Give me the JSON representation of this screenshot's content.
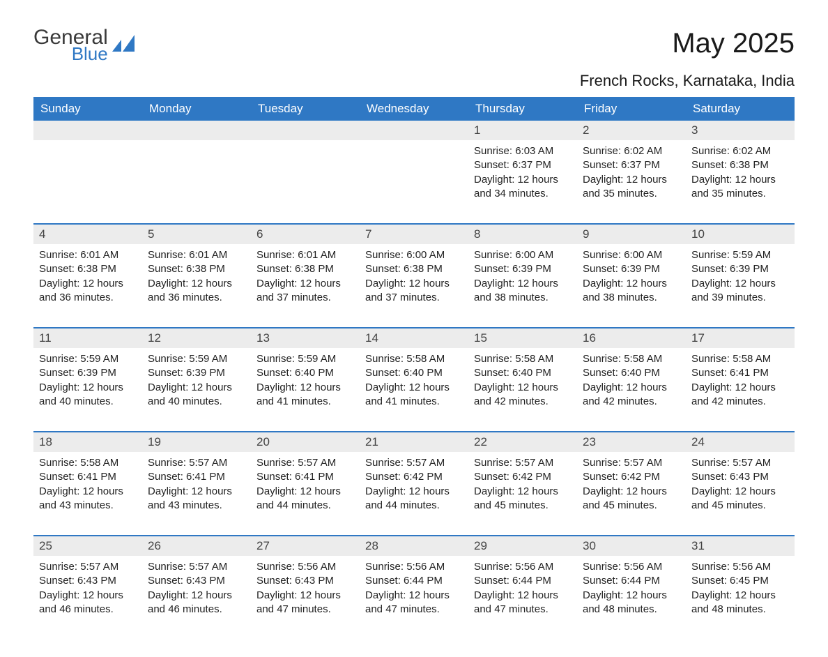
{
  "logo": {
    "word1": "General",
    "word2": "Blue",
    "brand_color": "#2f78c4",
    "text_color": "#3a3a3a"
  },
  "title": "May 2025",
  "location": "French Rocks, Karnataka, India",
  "header_bg": "#2f78c4",
  "header_fg": "#ffffff",
  "daynum_bg": "#ececec",
  "week_border": "#2f78c4",
  "body_bg": "#ffffff",
  "dow": [
    "Sunday",
    "Monday",
    "Tuesday",
    "Wednesday",
    "Thursday",
    "Friday",
    "Saturday"
  ],
  "weeks": [
    [
      null,
      null,
      null,
      null,
      {
        "n": "1",
        "sunrise": "6:03 AM",
        "sunset": "6:37 PM",
        "daylight": "12 hours and 34 minutes."
      },
      {
        "n": "2",
        "sunrise": "6:02 AM",
        "sunset": "6:37 PM",
        "daylight": "12 hours and 35 minutes."
      },
      {
        "n": "3",
        "sunrise": "6:02 AM",
        "sunset": "6:38 PM",
        "daylight": "12 hours and 35 minutes."
      }
    ],
    [
      {
        "n": "4",
        "sunrise": "6:01 AM",
        "sunset": "6:38 PM",
        "daylight": "12 hours and 36 minutes."
      },
      {
        "n": "5",
        "sunrise": "6:01 AM",
        "sunset": "6:38 PM",
        "daylight": "12 hours and 36 minutes."
      },
      {
        "n": "6",
        "sunrise": "6:01 AM",
        "sunset": "6:38 PM",
        "daylight": "12 hours and 37 minutes."
      },
      {
        "n": "7",
        "sunrise": "6:00 AM",
        "sunset": "6:38 PM",
        "daylight": "12 hours and 37 minutes."
      },
      {
        "n": "8",
        "sunrise": "6:00 AM",
        "sunset": "6:39 PM",
        "daylight": "12 hours and 38 minutes."
      },
      {
        "n": "9",
        "sunrise": "6:00 AM",
        "sunset": "6:39 PM",
        "daylight": "12 hours and 38 minutes."
      },
      {
        "n": "10",
        "sunrise": "5:59 AM",
        "sunset": "6:39 PM",
        "daylight": "12 hours and 39 minutes."
      }
    ],
    [
      {
        "n": "11",
        "sunrise": "5:59 AM",
        "sunset": "6:39 PM",
        "daylight": "12 hours and 40 minutes."
      },
      {
        "n": "12",
        "sunrise": "5:59 AM",
        "sunset": "6:39 PM",
        "daylight": "12 hours and 40 minutes."
      },
      {
        "n": "13",
        "sunrise": "5:59 AM",
        "sunset": "6:40 PM",
        "daylight": "12 hours and 41 minutes."
      },
      {
        "n": "14",
        "sunrise": "5:58 AM",
        "sunset": "6:40 PM",
        "daylight": "12 hours and 41 minutes."
      },
      {
        "n": "15",
        "sunrise": "5:58 AM",
        "sunset": "6:40 PM",
        "daylight": "12 hours and 42 minutes."
      },
      {
        "n": "16",
        "sunrise": "5:58 AM",
        "sunset": "6:40 PM",
        "daylight": "12 hours and 42 minutes."
      },
      {
        "n": "17",
        "sunrise": "5:58 AM",
        "sunset": "6:41 PM",
        "daylight": "12 hours and 42 minutes."
      }
    ],
    [
      {
        "n": "18",
        "sunrise": "5:58 AM",
        "sunset": "6:41 PM",
        "daylight": "12 hours and 43 minutes."
      },
      {
        "n": "19",
        "sunrise": "5:57 AM",
        "sunset": "6:41 PM",
        "daylight": "12 hours and 43 minutes."
      },
      {
        "n": "20",
        "sunrise": "5:57 AM",
        "sunset": "6:41 PM",
        "daylight": "12 hours and 44 minutes."
      },
      {
        "n": "21",
        "sunrise": "5:57 AM",
        "sunset": "6:42 PM",
        "daylight": "12 hours and 44 minutes."
      },
      {
        "n": "22",
        "sunrise": "5:57 AM",
        "sunset": "6:42 PM",
        "daylight": "12 hours and 45 minutes."
      },
      {
        "n": "23",
        "sunrise": "5:57 AM",
        "sunset": "6:42 PM",
        "daylight": "12 hours and 45 minutes."
      },
      {
        "n": "24",
        "sunrise": "5:57 AM",
        "sunset": "6:43 PM",
        "daylight": "12 hours and 45 minutes."
      }
    ],
    [
      {
        "n": "25",
        "sunrise": "5:57 AM",
        "sunset": "6:43 PM",
        "daylight": "12 hours and 46 minutes."
      },
      {
        "n": "26",
        "sunrise": "5:57 AM",
        "sunset": "6:43 PM",
        "daylight": "12 hours and 46 minutes."
      },
      {
        "n": "27",
        "sunrise": "5:56 AM",
        "sunset": "6:43 PM",
        "daylight": "12 hours and 47 minutes."
      },
      {
        "n": "28",
        "sunrise": "5:56 AM",
        "sunset": "6:44 PM",
        "daylight": "12 hours and 47 minutes."
      },
      {
        "n": "29",
        "sunrise": "5:56 AM",
        "sunset": "6:44 PM",
        "daylight": "12 hours and 47 minutes."
      },
      {
        "n": "30",
        "sunrise": "5:56 AM",
        "sunset": "6:44 PM",
        "daylight": "12 hours and 48 minutes."
      },
      {
        "n": "31",
        "sunrise": "5:56 AM",
        "sunset": "6:45 PM",
        "daylight": "12 hours and 48 minutes."
      }
    ]
  ],
  "labels": {
    "sunrise": "Sunrise: ",
    "sunset": "Sunset: ",
    "daylight": "Daylight: "
  }
}
